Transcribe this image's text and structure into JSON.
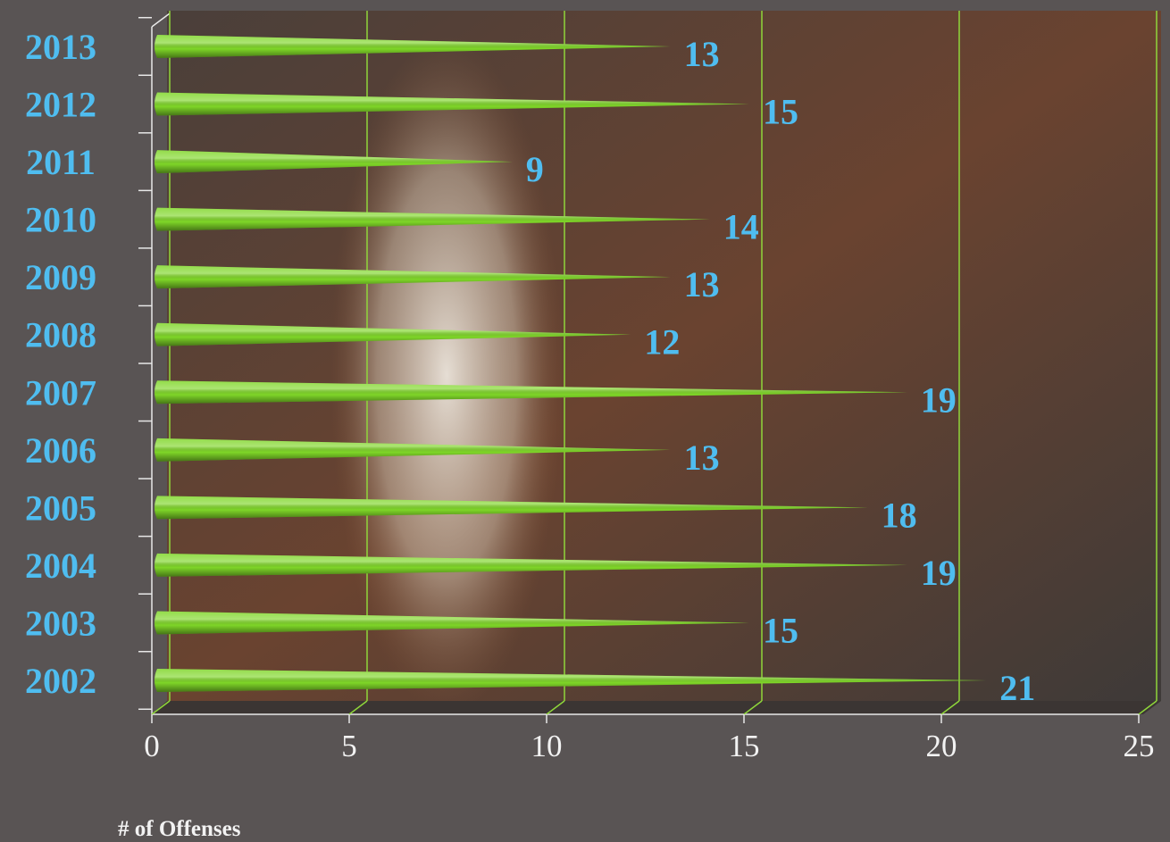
{
  "chart_data": {
    "type": "bar",
    "orientation": "horizontal",
    "xlabel": "# of Offenses",
    "categories": [
      "2002",
      "2003",
      "2004",
      "2005",
      "2006",
      "2007",
      "2008",
      "2009",
      "2010",
      "2011",
      "2012",
      "2013"
    ],
    "values": [
      21,
      15,
      19,
      18,
      13,
      19,
      12,
      13,
      14,
      9,
      15,
      13
    ],
    "color": "#7fd628",
    "label_color": "#4fbdf0",
    "grid_color": "#8fd63a",
    "xlim": [
      0,
      25
    ],
    "xticks": [
      0,
      5,
      10,
      15,
      20,
      25
    ],
    "grid": true
  }
}
